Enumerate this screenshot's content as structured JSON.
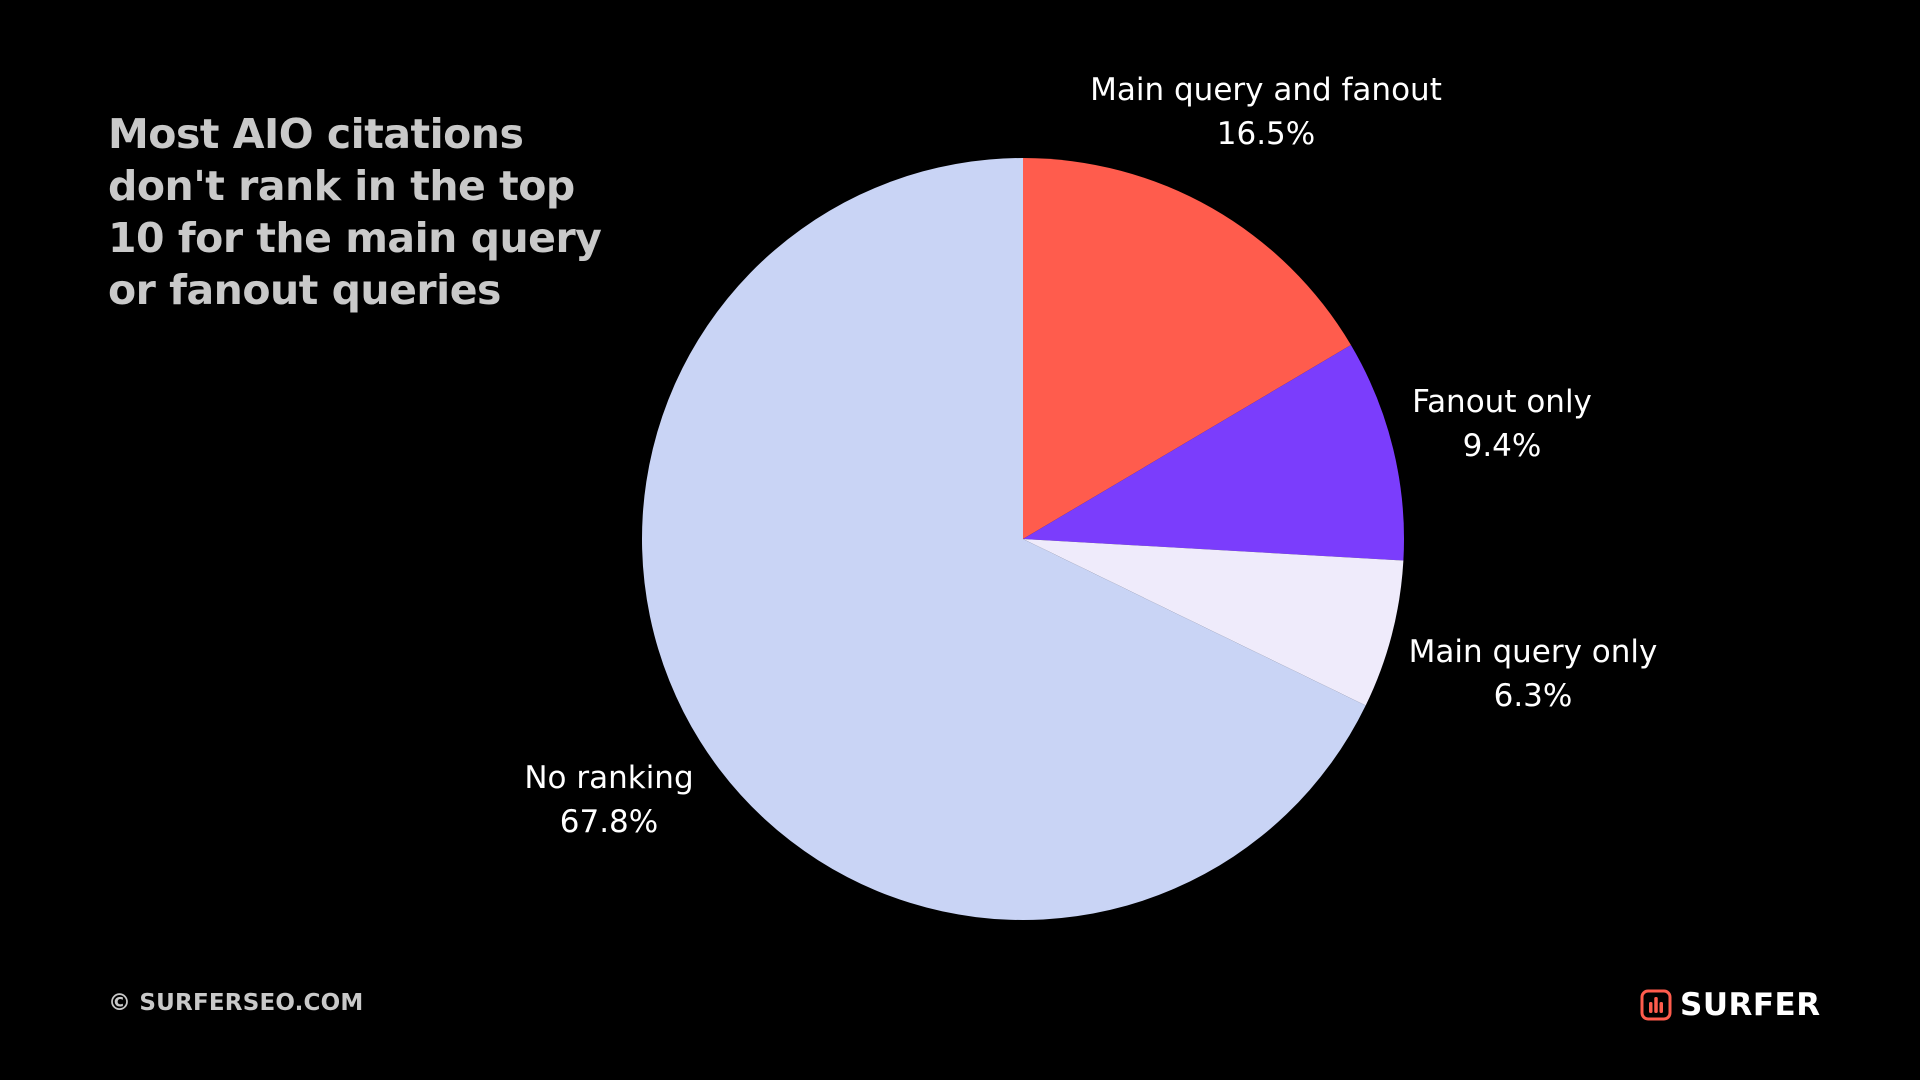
{
  "title": "Most AIO citations don't rank in the top 10 for the main query or fanout queries",
  "footer": {
    "copyright": "© SURFERSEO.COM",
    "brand": "SURFER"
  },
  "colors": {
    "background": "#000000",
    "title": "#c9c9c9",
    "brand_accent": "#ff5c4d"
  },
  "chart_data": {
    "type": "pie",
    "title": "Most AIO citations don't rank in the top 10 for the main query or fanout queries",
    "start": "12 o'clock, clockwise",
    "slices": [
      {
        "label": "Main query and fanout",
        "value": 16.5,
        "display": "16.5%",
        "color": "#ff5c4d"
      },
      {
        "label": "Fanout only",
        "value": 9.4,
        "display": "9.4%",
        "color": "#7b3dfc"
      },
      {
        "label": "Main query only",
        "value": 6.3,
        "display": "6.3%",
        "color": "#efebfb"
      },
      {
        "label": "No ranking",
        "value": 67.8,
        "display": "67.8%",
        "color": "#c9d4f5"
      }
    ]
  }
}
